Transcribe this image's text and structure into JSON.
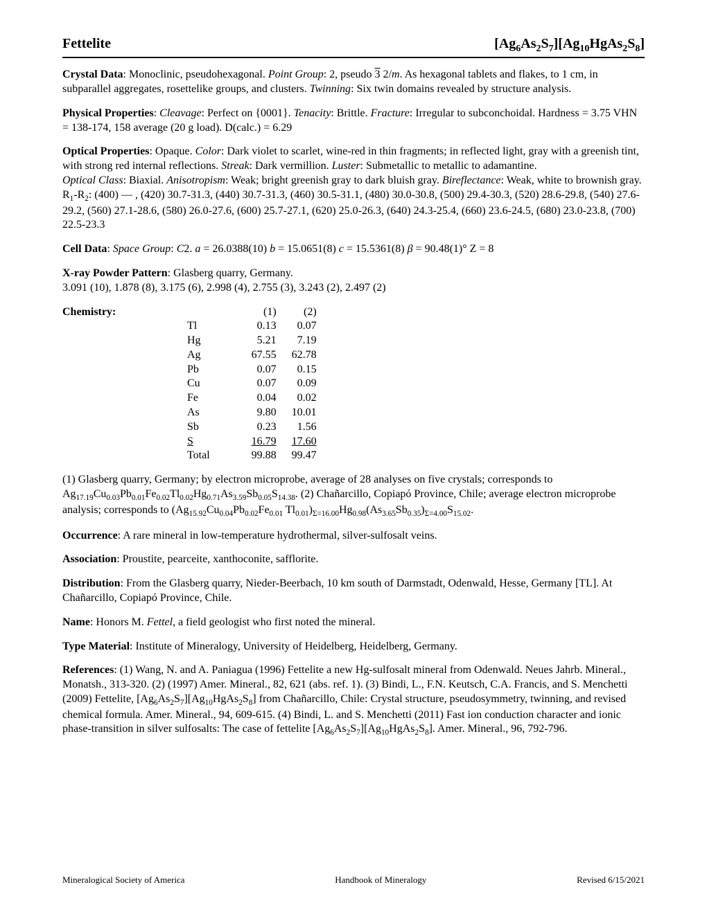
{
  "header": {
    "title": "Fettelite",
    "formula_html": "[Ag<sub>6</sub>As<sub>2</sub>S<sub>7</sub>][Ag<sub>10</sub>HgAs<sub>2</sub>S<sub>8</sub>]"
  },
  "crystal_data": {
    "label": "Crystal Data",
    "text_html": ": Monoclinic, pseudohexagonal.  <span class=\"italic\">Point Group</span>: 2, pseudo <span class=\"overbar\">3</span> 2/<span class=\"italic\">m</span>.   As hexagonal tablets and flakes, to 1 cm, in subparallel aggregates, rosettelike groups, and clusters.   <span class=\"italic\">Twinning</span>: Six twin domains revealed by structure analysis."
  },
  "physical": {
    "label": "Physical Properties",
    "text_html": ": <span class=\"italic\">Cleavage</span>: Perfect on {0001}.  <span class=\"italic\">Tenacity</span>: Brittle.   <span class=\"italic\">Fracture</span>: Irregular to subconchoidal.   Hardness = 3.75   VHN = 138-174, 158 average (20 g load).   D(calc.) = 6.29"
  },
  "optical": {
    "label": "Optical Properties",
    "text_html": ": Opaque. <span class=\"italic\">Color</span>: Dark violet to scarlet, wine-red in thin fragments; in reflected light, gray with a greenish tint, with strong red internal reflections.   <span class=\"italic\">Streak</span>: Dark vermillion. <span class=\"italic\">Luster</span>: Submetallic to metallic to adamantine.<br><span class=\"italic\">Optical Class</span>: Biaxial.   <span class=\"italic\">Anisotropism</span>: Weak; bright greenish gray to dark bluish gray. <span class=\"italic\">Bireflectance</span>: Weak, white to brownish gray.<br>R<sub>1</sub>-R<sub>2</sub>: (400) — , (420) 30.7-31.3, (440) 30.7-31.3, (460) 30.5-31.1, (480) 30.0-30.8, (500) 29.4-30.3, (520) 28.6-29.8, (540) 27.6-29.2, (560) 27.1-28.6, (580) 26.0-27.6, (600) 25.7-27.1, (620) 25.0-26.3, (640) 24.3-25.4, (660) 23.6-24.5, (680) 23.0-23.8, (700) 22.5-23.3"
  },
  "cell": {
    "label": "Cell Data",
    "text_html": ": <span class=\"italic\">Space Group</span>: <span class=\"italic\">C</span>2.  <span class=\"italic\">a</span> = 26.0388(10)  <span class=\"italic\">b</span> = 15.0651(8)  <span class=\"italic\">c</span> = 15.5361(8)  <span class=\"italic\">β</span> = 90.48(1)°  Z = 8"
  },
  "xray": {
    "label": "X-ray Powder Pattern",
    "text_html": ": Glasberg quarry, Germany.<br>3.091 (10), 1.878 (8), 3.175 (6), 2.998 (4), 2.755 (3), 3.243 (2), 2.497 (2)"
  },
  "chemistry": {
    "label": "Chemistry",
    "columns": [
      "",
      "(1)",
      "(2)"
    ],
    "rows": [
      [
        "Tl",
        "0.13",
        "0.07"
      ],
      [
        "Hg",
        "5.21",
        "7.19"
      ],
      [
        "Ag",
        "67.55",
        "62.78"
      ],
      [
        "Pb",
        "0.07",
        "0.15"
      ],
      [
        "Cu",
        "0.07",
        "0.09"
      ],
      [
        "Fe",
        "0.04",
        "0.02"
      ],
      [
        "As",
        "9.80",
        "10.01"
      ],
      [
        "Sb",
        "0.23",
        "1.56"
      ],
      [
        "S",
        "16.79",
        "17.60"
      ],
      [
        "Total",
        "99.88",
        "99.47"
      ]
    ],
    "note_html": "(1) Glasberg quarry, Germany; by electron microprobe, average of 28 analyses on five crystals; corresponds to Ag<sub>17.19</sub>Cu<sub>0.03</sub>Pb<sub>0.01</sub>Fe<sub>0.02</sub>Tl<sub>0.02</sub>Hg<sub>0.71</sub>As<sub>3.59</sub>Sb<sub>0.05</sub>S<sub>14.38</sub>.   (2) Chañarcillo, Copiapó Province, Chile; average electron microprobe analysis; corresponds to (Ag<sub>15.92</sub>Cu<sub>0.04</sub>Pb<sub>0.02</sub>Fe<sub>0.01</sub> Tl<sub>0.01</sub>)<sub>Σ=16.00</sub>Hg<sub>0.98</sub>(As<sub>3.65</sub>Sb<sub>0.35</sub>)<sub>Σ=4.00</sub>S<sub>15.02</sub>."
  },
  "occurrence": {
    "label": "Occurrence",
    "text": ": A rare mineral in low-temperature hydrothermal, silver-sulfosalt veins."
  },
  "association": {
    "label": "Association",
    "text": ": Proustite, pearceite, xanthoconite, safflorite."
  },
  "distribution": {
    "label": "Distribution",
    "text": ": From the Glasberg quarry, Nieder-Beerbach, 10 km south of Darmstadt, Odenwald, Hesse, Germany [TL]. At Chañarcillo, Copiapó Province, Chile."
  },
  "name": {
    "label": "Name",
    "text_html": ": Honors M. <span class=\"italic\">Fettel</span>, a field geologist who first noted the mineral."
  },
  "type_material": {
    "label": "Type Material",
    "text": ": Institute of Mineralogy, University of Heidelberg, Heidelberg, Germany."
  },
  "references": {
    "label": "References",
    "text_html": ": (1) Wang, N. and A. Paniagua (1996) Fettelite a new Hg-sulfosalt mineral from Odenwald. Neues Jahrb. Mineral., Monatsh., 313-320. (2) (1997) Amer. Mineral., 82, 621 (abs. ref. 1).  (3) Bindi, L., F.N. Keutsch, C.A. Francis, and S. Menchetti (2009) Fettelite, [Ag<sub>6</sub>As<sub>2</sub>S<sub>7</sub>][Ag<sub>10</sub>HgAs<sub>2</sub>S<sub>8</sub>] from Chañarcillo, Chile: Crystal structure, pseudosymmetry, twinning, and revised chemical formula. Amer. Mineral., 94, 609-615.  (4) Bindi, L. and S. Menchetti (2011) Fast ion conduction character and ionic phase-transition in silver sulfosalts: The case of fettelite [Ag<sub>6</sub>As<sub>2</sub>S<sub>7</sub>][Ag<sub>10</sub>HgAs<sub>2</sub>S<sub>8</sub>]. Amer. Mineral., 96, 792-796."
  },
  "footer": {
    "left": "Mineralogical Society of America",
    "center": "Handbook of Mineralogy",
    "right": "Revised 6/15/2021"
  }
}
